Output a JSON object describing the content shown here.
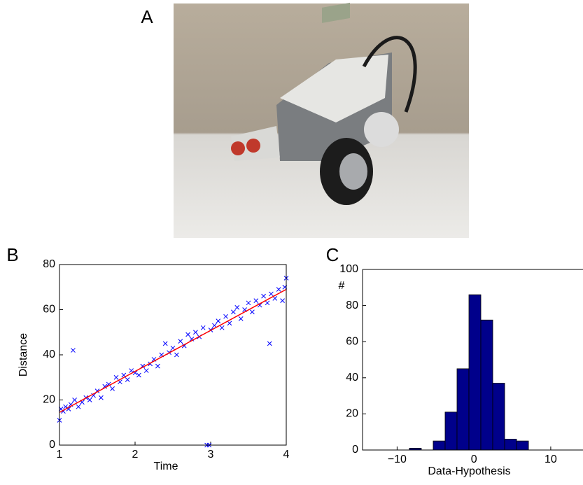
{
  "panels": {
    "a": "A",
    "b": "B",
    "c": "C"
  },
  "chart_data": [
    {
      "type": "scatter",
      "xlabel": "Time",
      "ylabel": "Distance",
      "xlim": [
        1,
        4
      ],
      "ylim": [
        0,
        80
      ],
      "xticks": [
        1,
        2,
        3,
        4
      ],
      "yticks": [
        0,
        20,
        40,
        60,
        80
      ],
      "color": "#0000ff",
      "x": [
        1.0,
        1.02,
        1.05,
        1.08,
        1.12,
        1.15,
        1.18,
        1.2,
        1.25,
        1.3,
        1.35,
        1.4,
        1.45,
        1.5,
        1.55,
        1.6,
        1.65,
        1.7,
        1.75,
        1.8,
        1.85,
        1.9,
        1.95,
        2.0,
        2.05,
        2.1,
        2.15,
        2.2,
        2.25,
        2.3,
        2.35,
        2.4,
        2.45,
        2.5,
        2.55,
        2.6,
        2.65,
        2.7,
        2.75,
        2.8,
        2.85,
        2.9,
        2.95,
        2.98,
        3.0,
        3.05,
        3.1,
        3.15,
        3.2,
        3.25,
        3.3,
        3.35,
        3.4,
        3.45,
        3.5,
        3.55,
        3.6,
        3.65,
        3.7,
        3.75,
        3.78,
        3.8,
        3.85,
        3.9,
        3.95,
        3.98,
        4.0
      ],
      "y": [
        11,
        16,
        15,
        17,
        16,
        18,
        42,
        20,
        17,
        19,
        21,
        20,
        22,
        24,
        21,
        26,
        27,
        25,
        30,
        28,
        31,
        29,
        33,
        32,
        31,
        35,
        33,
        36,
        38,
        35,
        40,
        45,
        41,
        43,
        40,
        46,
        44,
        49,
        47,
        50,
        48,
        52,
        0,
        0,
        51,
        53,
        55,
        52,
        57,
        54,
        59,
        61,
        56,
        60,
        63,
        59,
        64,
        62,
        66,
        63,
        45,
        67,
        65,
        69,
        64,
        70,
        74
      ],
      "fit": {
        "x": [
          1,
          4
        ],
        "y": [
          14.5,
          69
        ],
        "color": "#ff0000"
      }
    },
    {
      "type": "histogram",
      "xlabel": "Data-Hypothesis",
      "ylabel": "#",
      "xlim": [
        -14.5,
        14.2
      ],
      "ylim": [
        0,
        100
      ],
      "xticks": [
        {
          "value": -10,
          "label": "−10"
        },
        0,
        10
      ],
      "yticks": [
        0,
        20,
        40,
        60,
        80,
        100
      ],
      "color": "#00008b",
      "bins": [
        -8.4,
        -6.85,
        -5.3,
        -3.75,
        -2.2,
        -0.65,
        0.9,
        2.45,
        4.0,
        5.55,
        7.1
      ],
      "counts": [
        1,
        0,
        5,
        21,
        45,
        86,
        72,
        37,
        6,
        5
      ]
    }
  ]
}
